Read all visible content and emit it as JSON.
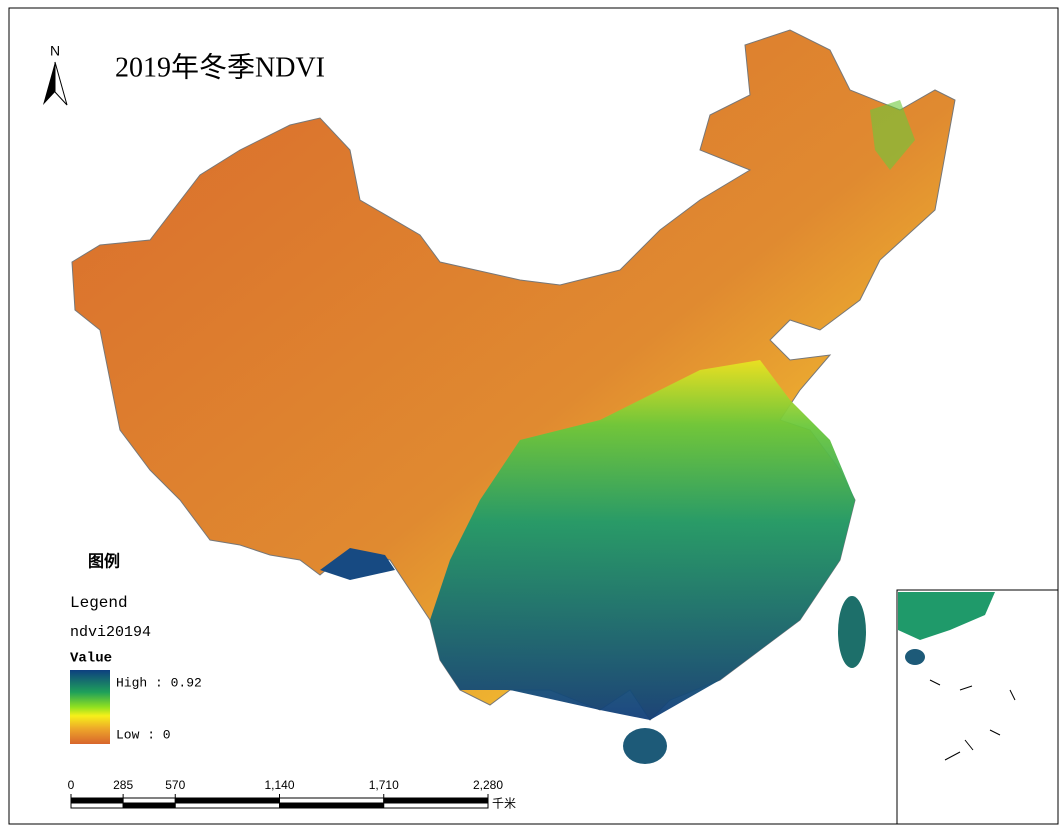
{
  "title": "2019年冬季NDVI",
  "north_arrow": "N",
  "legend": {
    "heading": "图例",
    "title": "Legend",
    "layer": "ndvi20194",
    "field": "Value",
    "high": "High : 0.92",
    "low": "Low : 0"
  },
  "scale_bar": {
    "ticks": [
      0,
      285,
      570,
      {
        "value": 1140,
        "label": "1,140"
      },
      {
        "value": 1710,
        "label": "1,710"
      },
      {
        "value": 2280,
        "label": "2,280"
      }
    ],
    "unit": "千米"
  }
}
